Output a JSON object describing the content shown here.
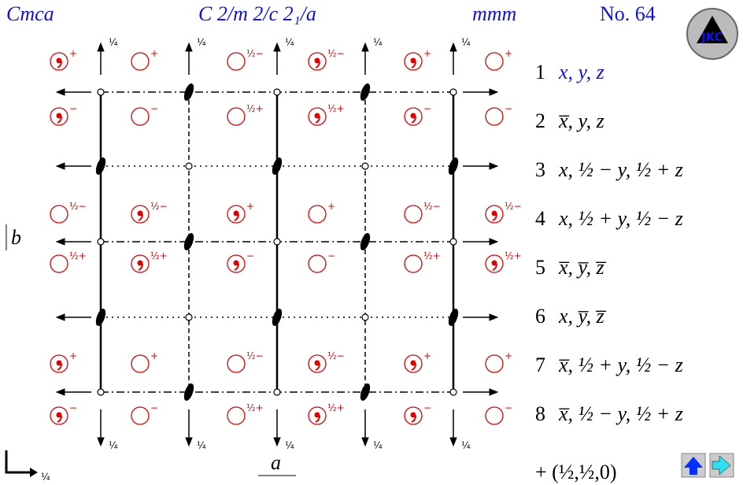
{
  "header": {
    "symbol": "Cmca",
    "full_symbol": "C 2/m 2/c 2₁/a",
    "point_group": "mmm",
    "number": "No. 64"
  },
  "logo": "JKC",
  "axes": {
    "b": "b",
    "a": "a",
    "height": "¼"
  },
  "positions": [
    [
      {
        "label": "+",
        "comma": true
      },
      {
        "label": "+",
        "comma": false
      },
      {
        "label": "½−",
        "comma": false
      },
      {
        "label": "½−",
        "comma": true
      },
      {
        "label": "+",
        "comma": true
      },
      {
        "label": "+",
        "comma": false
      }
    ],
    [
      {
        "label": "−",
        "comma": true
      },
      {
        "label": "−",
        "comma": false
      },
      {
        "label": "½+",
        "comma": false
      },
      {
        "label": "½+",
        "comma": true
      },
      {
        "label": "−",
        "comma": true
      },
      {
        "label": "−",
        "comma": false
      }
    ],
    [
      {
        "label": "½−",
        "comma": false
      },
      {
        "label": "½−",
        "comma": true
      },
      {
        "label": "+",
        "comma": true
      },
      {
        "label": "+",
        "comma": false
      },
      {
        "label": "½−",
        "comma": false
      },
      {
        "label": "½−",
        "comma": true
      }
    ],
    [
      {
        "label": "½+",
        "comma": false
      },
      {
        "label": "½+",
        "comma": true
      },
      {
        "label": "−",
        "comma": true
      },
      {
        "label": "−",
        "comma": false
      },
      {
        "label": "½+",
        "comma": false
      },
      {
        "label": "½+",
        "comma": true
      }
    ],
    [
      {
        "label": "+",
        "comma": true
      },
      {
        "label": "+",
        "comma": false
      },
      {
        "label": "½−",
        "comma": false
      },
      {
        "label": "½−",
        "comma": true
      },
      {
        "label": "+",
        "comma": true
      },
      {
        "label": "+",
        "comma": false
      }
    ],
    [
      {
        "label": "−",
        "comma": true
      },
      {
        "label": "−",
        "comma": false
      },
      {
        "label": "½+",
        "comma": false
      },
      {
        "label": "½+",
        "comma": true
      },
      {
        "label": "−",
        "comma": true
      },
      {
        "label": "−",
        "comma": false
      }
    ]
  ],
  "operations": [
    {
      "number": "1",
      "expression": "x, y, z"
    },
    {
      "number": "2",
      "expression": "x̅, y, z"
    },
    {
      "number": "3",
      "expression": "x, ½ − y, ½ + z"
    },
    {
      "number": "4",
      "expression": "x, ½ + y, ½ − z"
    },
    {
      "number": "5",
      "expression": "x̅, y̅, z̅"
    },
    {
      "number": "6",
      "expression": "x, y̅, z̅"
    },
    {
      "number": "7",
      "expression": "x̅, ½ + y, ½ − z"
    },
    {
      "number": "8",
      "expression": "x̅, ½ − y, ½ + z"
    }
  ],
  "centering": "+ (½,½,0)"
}
